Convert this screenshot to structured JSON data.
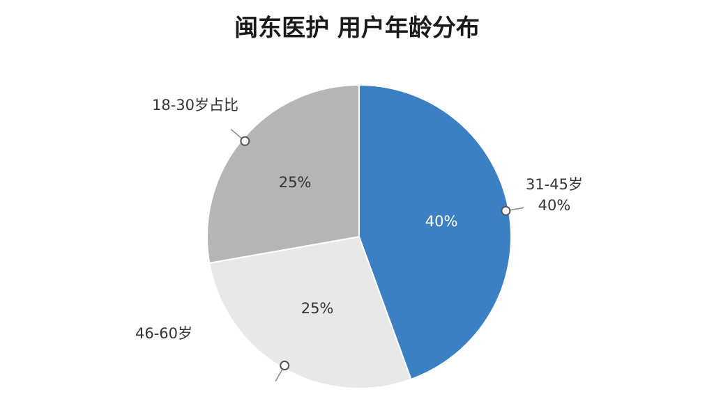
{
  "chart_data": {
    "type": "pie",
    "title": "闽东医护  用户年龄分布",
    "categories": [
      "31-45岁",
      "46-60岁",
      "18-30岁占比"
    ],
    "values": [
      40,
      25,
      25
    ],
    "value_labels": [
      "40%",
      "25%",
      "25%"
    ],
    "colors": [
      "#3b80c2",
      "#e8e8e8",
      "#b5b5b5"
    ]
  }
}
